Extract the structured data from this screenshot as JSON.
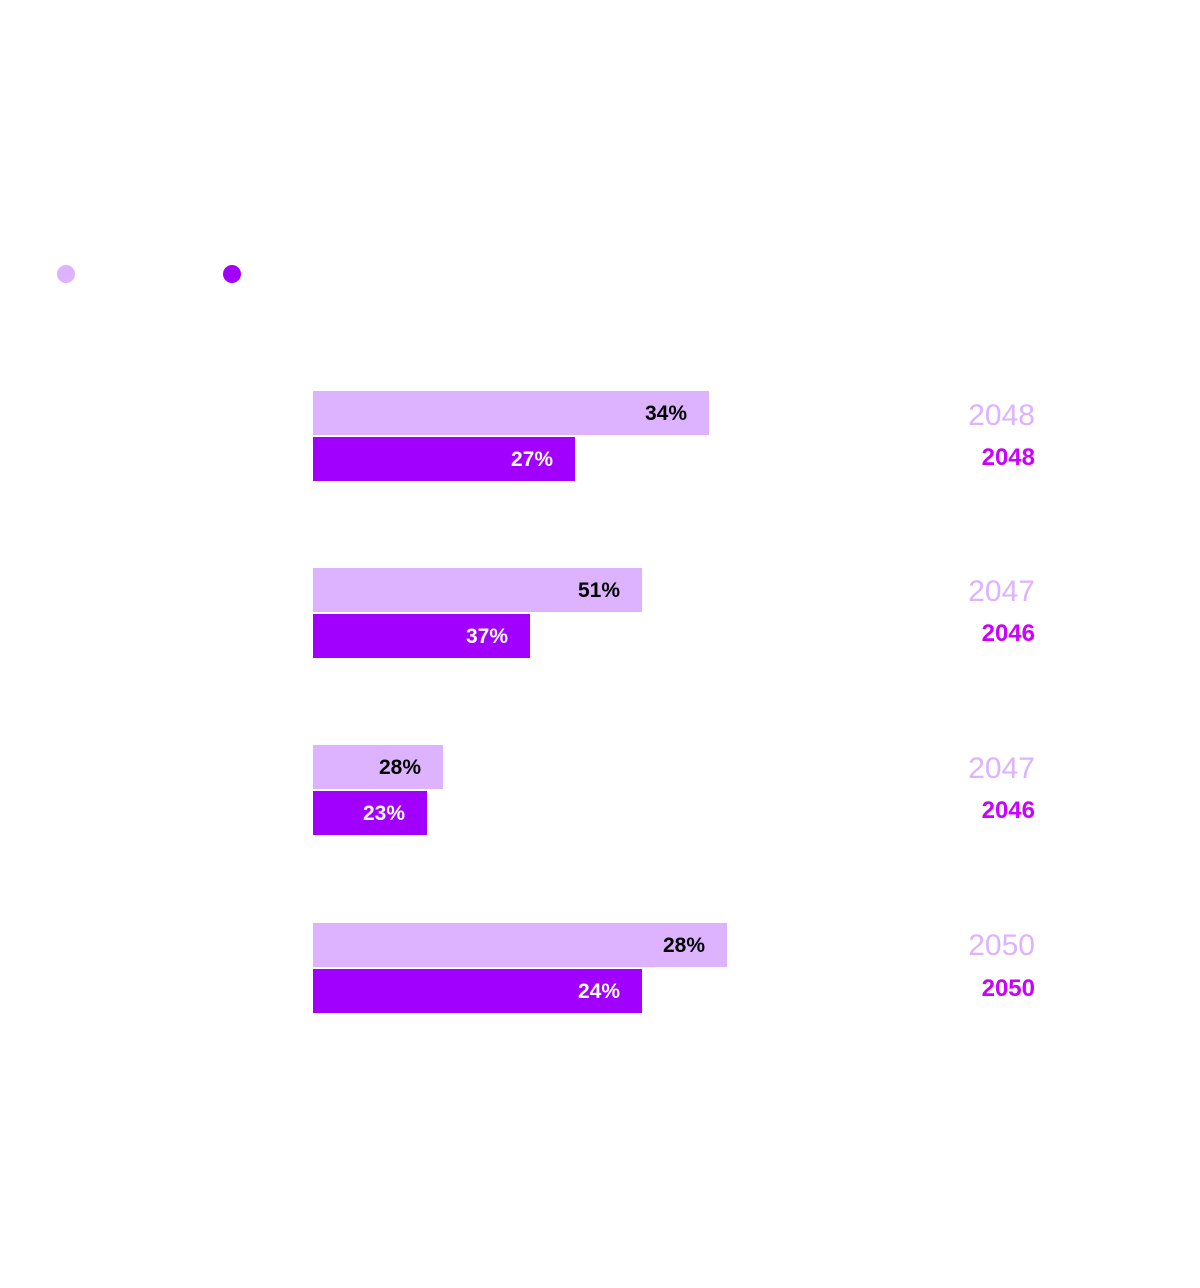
{
  "colors": {
    "series_a": "#ddb3ff",
    "series_b": "#a100ff",
    "label_a": "#000000",
    "label_b": "#ffffff",
    "year_a": "#ddb3ff",
    "year_b": "#cc00ff"
  },
  "chart_data": {
    "type": "bar",
    "orientation": "horizontal",
    "grid": false,
    "legend": "top-left",
    "series": [
      {
        "color": "#ddb3ff",
        "values": [
          34,
          51,
          28,
          28
        ],
        "value_labels": [
          "34%",
          "51%",
          "28%",
          "28%"
        ],
        "years": [
          "2048",
          "2047",
          "2047",
          "2050"
        ]
      },
      {
        "color": "#a100ff",
        "values": [
          27,
          37,
          23,
          24
        ],
        "value_labels": [
          "27%",
          "37%",
          "23%",
          "24%"
        ],
        "years": [
          "2048",
          "2046",
          "2046",
          "2050"
        ]
      }
    ]
  }
}
